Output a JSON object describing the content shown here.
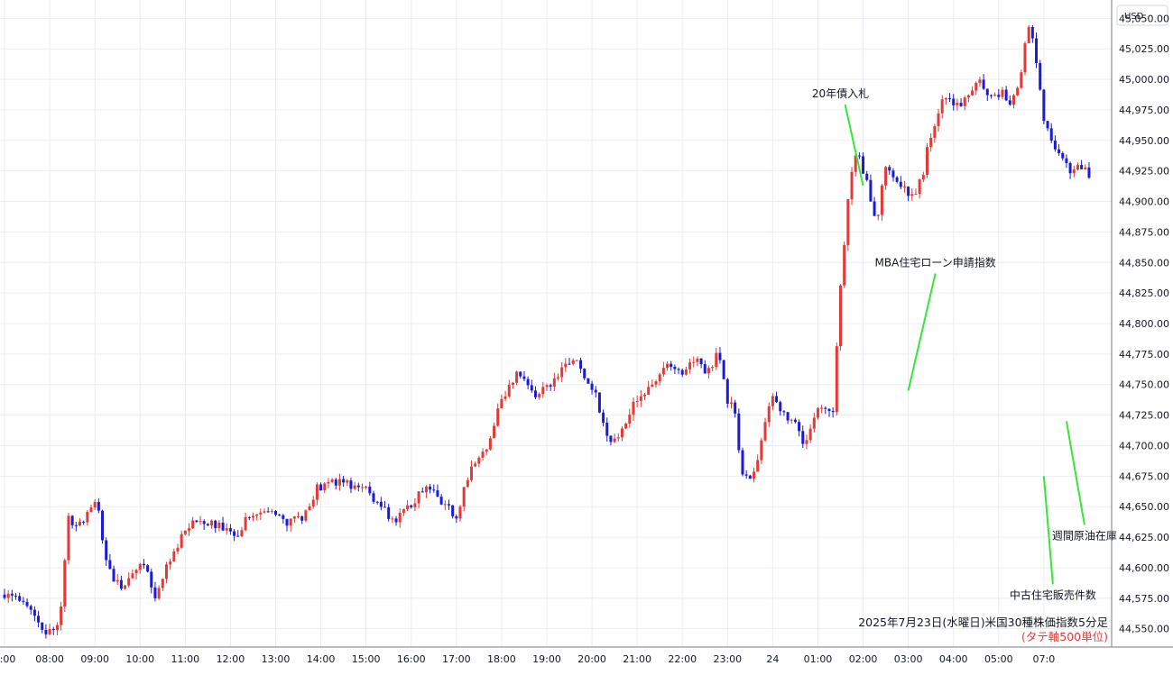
{
  "chart_data": {
    "type": "candlestick",
    "currency_label": "USD",
    "caption": "2025年7月23日(水曜日)米国30種株価指数5分足",
    "caption_sub": "(タテ軸500単位)",
    "colors": {
      "up": "#e53935",
      "down": "#1a1ad8",
      "annotation_line": "#37e637",
      "grid": "#e9edf3",
      "axis": "#787b86"
    },
    "grid": true,
    "x_ticks": [
      "7:00",
      "08:00",
      "09:00",
      "10:00",
      "11:00",
      "12:00",
      "13:00",
      "14:00",
      "15:00",
      "16:00",
      "17:00",
      "18:00",
      "19:00",
      "20:00",
      "21:00",
      "22:00",
      "23:00",
      "24",
      "01:00",
      "02:00",
      "03:00",
      "04:00",
      "05:00",
      "07:0"
    ],
    "y_ticks": [
      "45,050.00",
      "45,025.00",
      "45,000.00",
      "44,975.00",
      "44,950.00",
      "44,925.00",
      "44,900.00",
      "44,875.00",
      "44,850.00",
      "44,825.00",
      "44,800.00",
      "44,775.00",
      "44,750.00",
      "44,725.00",
      "44,700.00",
      "44,675.00",
      "44,650.00",
      "44,625.00",
      "44,600.00",
      "44,575.00",
      "44,550.00"
    ],
    "ylim": [
      44535,
      45065
    ],
    "x_range_hours": [
      -0.1,
      24.5
    ],
    "close_path": [
      [
        0.0,
        44578
      ],
      [
        0.4,
        44575
      ],
      [
        0.6,
        44566
      ],
      [
        0.85,
        44545
      ],
      [
        1.1,
        44548
      ],
      [
        1.25,
        44568
      ],
      [
        1.4,
        44640
      ],
      [
        1.6,
        44632
      ],
      [
        1.85,
        44648
      ],
      [
        2.05,
        44652
      ],
      [
        2.3,
        44598
      ],
      [
        2.55,
        44585
      ],
      [
        2.85,
        44595
      ],
      [
        3.1,
        44605
      ],
      [
        3.3,
        44575
      ],
      [
        3.6,
        44605
      ],
      [
        3.9,
        44625
      ],
      [
        4.2,
        44638
      ],
      [
        4.5,
        44635
      ],
      [
        4.8,
        44632
      ],
      [
        5.1,
        44625
      ],
      [
        5.4,
        44645
      ],
      [
        5.7,
        44650
      ],
      [
        6.0,
        44640
      ],
      [
        6.3,
        44635
      ],
      [
        6.6,
        44642
      ],
      [
        6.9,
        44665
      ],
      [
        7.3,
        44670
      ],
      [
        7.6,
        44668
      ],
      [
        8.0,
        44665
      ],
      [
        8.3,
        44650
      ],
      [
        8.6,
        44640
      ],
      [
        9.0,
        44650
      ],
      [
        9.3,
        44665
      ],
      [
        9.7,
        44655
      ],
      [
        10.0,
        44640
      ],
      [
        10.2,
        44670
      ],
      [
        10.4,
        44685
      ],
      [
        10.7,
        44700
      ],
      [
        10.9,
        44725
      ],
      [
        11.1,
        44745
      ],
      [
        11.4,
        44760
      ],
      [
        11.7,
        44740
      ],
      [
        12.0,
        44748
      ],
      [
        12.3,
        44760
      ],
      [
        12.6,
        44770
      ],
      [
        12.9,
        44755
      ],
      [
        13.1,
        44740
      ],
      [
        13.3,
        44710
      ],
      [
        13.5,
        44705
      ],
      [
        13.8,
        44725
      ],
      [
        14.1,
        44745
      ],
      [
        14.4,
        44750
      ],
      [
        14.7,
        44768
      ],
      [
        15.0,
        44760
      ],
      [
        15.2,
        44775
      ],
      [
        15.5,
        44760
      ],
      [
        15.8,
        44775
      ],
      [
        16.0,
        44738
      ],
      [
        16.15,
        44730
      ],
      [
        16.3,
        44678
      ],
      [
        16.5,
        44672
      ],
      [
        16.7,
        44695
      ],
      [
        17.0,
        44745
      ],
      [
        17.2,
        44730
      ],
      [
        17.5,
        44715
      ],
      [
        17.7,
        44700
      ],
      [
        18.0,
        44728
      ],
      [
        18.2,
        44735
      ],
      [
        18.35,
        44725
      ],
      [
        18.45,
        44805
      ],
      [
        18.6,
        44875
      ],
      [
        18.8,
        44945
      ],
      [
        19.1,
        44915
      ],
      [
        19.3,
        44880
      ],
      [
        19.5,
        44930
      ],
      [
        19.8,
        44910
      ],
      [
        20.1,
        44905
      ],
      [
        20.3,
        44920
      ],
      [
        20.5,
        44955
      ],
      [
        20.8,
        44990
      ],
      [
        21.0,
        44978
      ],
      [
        21.3,
        44985
      ],
      [
        21.6,
        44997
      ],
      [
        21.9,
        44985
      ],
      [
        22.1,
        44990
      ],
      [
        22.3,
        44980
      ],
      [
        22.5,
        45005
      ],
      [
        22.65,
        45048
      ],
      [
        22.8,
        45030
      ],
      [
        22.95,
        44975
      ],
      [
        23.2,
        44945
      ],
      [
        23.4,
        44935
      ],
      [
        23.6,
        44925
      ],
      [
        23.8,
        44930
      ],
      [
        24.0,
        44920
      ]
    ],
    "annotations": [
      {
        "text": "MBA住宅ローン申請指数",
        "x": 20.0,
        "y": 44745,
        "label_pos": "above"
      },
      {
        "text": "中古住宅販売件数",
        "x": 23.0,
        "y": 44675,
        "label_pos": "below"
      },
      {
        "text": "週間原油在庫",
        "x": 23.5,
        "y": 44720,
        "label_pos": "below"
      },
      {
        "text": "20年債入札",
        "x": 19.0,
        "y": 44913,
        "label_pos": "above"
      }
    ]
  }
}
